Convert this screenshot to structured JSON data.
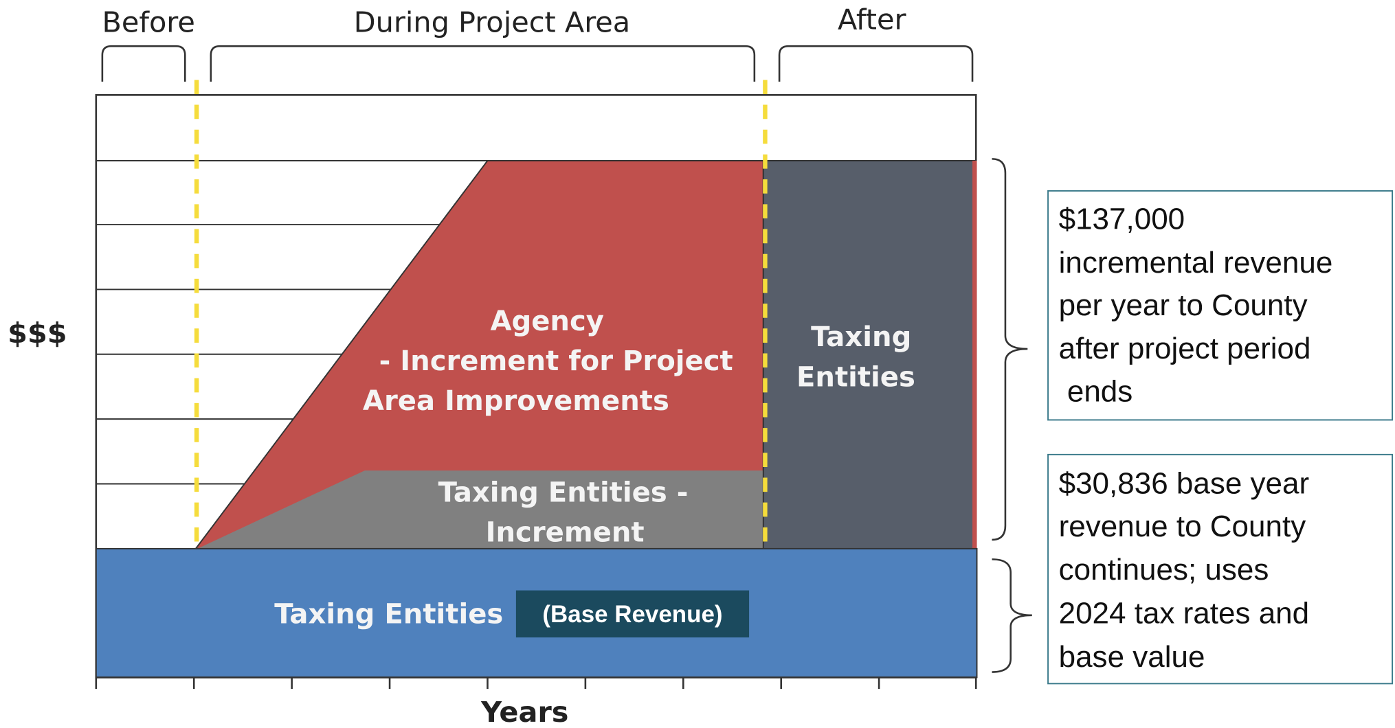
{
  "phases": [
    "Before",
    "During Project Area",
    "After"
  ],
  "y_label": "$$$",
  "x_label": "Years",
  "regions": {
    "agency": [
      "Agency",
      "- Increment for Project",
      "Area Improvements"
    ],
    "increment": [
      "Taxing Entities -",
      "Increment"
    ],
    "after": [
      "Taxing",
      "Entities"
    ],
    "base": "Taxing Entities",
    "base_badge": "(Base Revenue)"
  },
  "notes": [
    [
      "$137,000",
      "incremental revenue",
      "per year to County",
      "after project period",
      " ends"
    ],
    [
      "$30,836 base year",
      "revenue to County",
      "continues; uses",
      "2024 tax rates and",
      "base value"
    ]
  ]
}
